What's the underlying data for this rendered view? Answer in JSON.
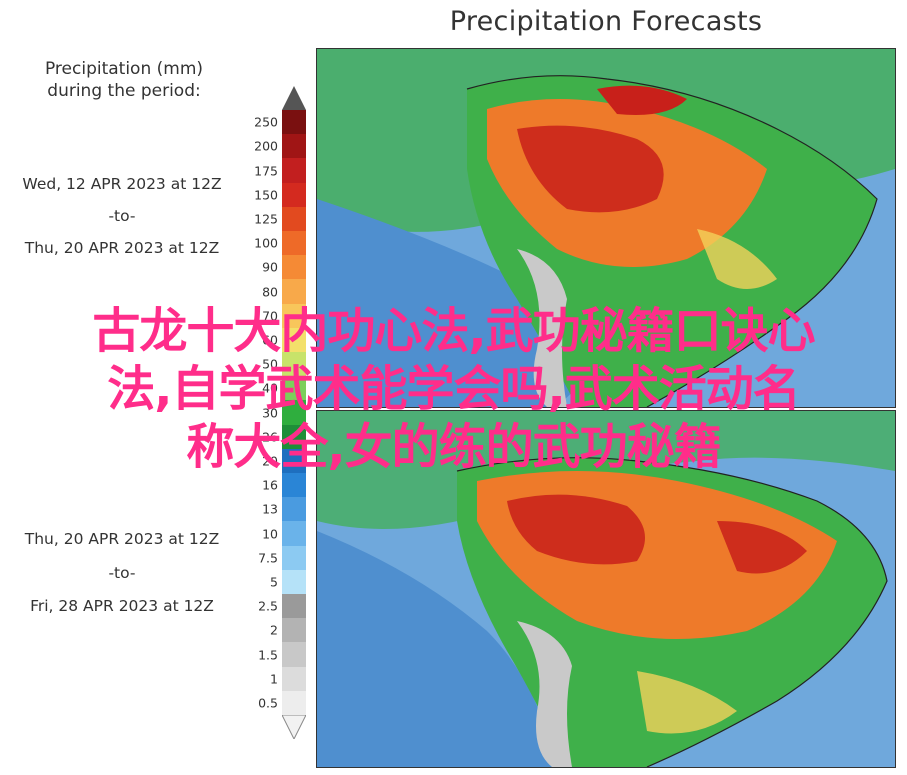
{
  "title": "Precipitation Forecasts",
  "legend": {
    "title_line1": "Precipitation (mm)",
    "title_line2": "during the period:",
    "levels": [
      "250",
      "200",
      "175",
      "150",
      "125",
      "100",
      "90",
      "80",
      "70",
      "60",
      "50",
      "40",
      "30",
      "26",
      "20",
      "16",
      "13",
      "10",
      "7.5",
      "5",
      "2.5",
      "2",
      "1.5",
      "1",
      "0.5"
    ],
    "colors": [
      "#7a1010",
      "#a01515",
      "#c21f1f",
      "#d42a1f",
      "#e24a1f",
      "#ee6a28",
      "#f58a35",
      "#f8a94a",
      "#f8c65b",
      "#f3e06a",
      "#c8e36a",
      "#7ccf5b",
      "#2fae3e",
      "#1e8f38",
      "#1e6fbf",
      "#2a85d6",
      "#4a9be0",
      "#6ab3ea",
      "#8ccaf2",
      "#b5e2f8",
      "#9a9a9a",
      "#b3b3b3",
      "#c8c8c8",
      "#dcdcdc",
      "#ededed"
    ]
  },
  "periods": [
    {
      "start": "Wed, 12 APR 2023 at 12Z",
      "sep": "-to-",
      "end": "Thu, 20 APR 2023 at 12Z"
    },
    {
      "start": "Thu, 20 APR 2023 at 12Z",
      "sep": "-to-",
      "end": "Fri, 28 APR 2023 at 12Z"
    }
  ],
  "overlay_text": [
    "古龙十大内功心法,武功秘籍口诀心",
    "法,自学武术能学会吗,武术活动名",
    "称大全,女的练的武功秘籍"
  ],
  "map_colors": {
    "ocean": "#6fa8dc",
    "ocean_dark": "#4f8fcf",
    "land_green": "#3fb04a",
    "land_orange": "#ee7a2a",
    "land_red": "#c8201a",
    "land_yellow": "#f2d25a",
    "land_gray": "#c9c9c9"
  }
}
